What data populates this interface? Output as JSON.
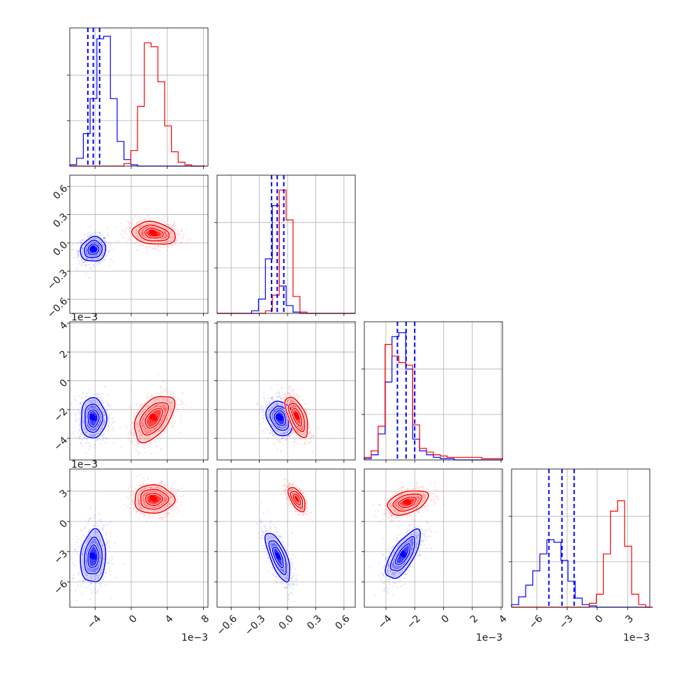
{
  "chart_data": {
    "type": "corner",
    "parameters": 4,
    "series": [
      {
        "name": "",
        "color": "#0000ff"
      },
      {
        "name": "",
        "color": "#ff0000"
      }
    ],
    "axes": {
      "p0": {
        "range": [
          -0.0068,
          0.0085
        ],
        "ticks": [
          -0.004,
          0,
          0.004,
          0.008
        ],
        "tick_labels": [
          "−4",
          "0",
          "4",
          "8"
        ],
        "offset_label": "1e−3"
      },
      "p1": {
        "range": [
          -0.75,
          0.72
        ],
        "ticks": [
          -0.6,
          -0.3,
          0.0,
          0.3,
          0.6
        ],
        "tick_labels": [
          "−0.6",
          "−0.3",
          "0.0",
          "0.3",
          "0.6"
        ],
        "offset_label": ""
      },
      "p2": {
        "range": [
          -0.0055,
          0.0041
        ],
        "ticks": [
          -0.004,
          -0.002,
          0,
          0.002,
          0.004
        ],
        "tick_labels": [
          "−4",
          "−2",
          "0",
          "2",
          "4"
        ],
        "offset_label": "1e−3"
      },
      "p3": {
        "range": [
          -0.0085,
          0.0052
        ],
        "ticks": [
          -0.006,
          -0.003,
          0,
          0.003
        ],
        "tick_labels": [
          "−6",
          "−3",
          "0",
          "3"
        ],
        "offset_label": "1e−3"
      }
    },
    "histograms": [
      {
        "param": "p0",
        "quantiles_blue": [
          -0.0048,
          -0.0042,
          -0.0035
        ],
        "blue": {
          "edges_start": -0.0068,
          "bin_width": 0.00075,
          "counts": [
            0.01,
            0.06,
            0.25,
            0.52,
            0.98,
            1.0,
            0.52,
            0.19,
            0.05,
            0.01,
            0,
            0,
            0,
            0,
            0,
            0,
            0,
            0,
            0,
            0
          ]
        },
        "red": {
          "edges_start": -0.0068,
          "bin_width": 0.00075,
          "counts": [
            0,
            0,
            0,
            0,
            0,
            0,
            0,
            0,
            0.02,
            0.12,
            0.46,
            0.95,
            0.92,
            0.65,
            0.31,
            0.11,
            0.03,
            0.01,
            0,
            0
          ]
        }
      },
      {
        "param": "p1",
        "quantiles_blue": [
          -0.17,
          -0.11,
          -0.04
        ],
        "blue": {
          "edges_start": -0.75,
          "bin_width": 0.0735,
          "counts": [
            0,
            0,
            0,
            0,
            0,
            0.02,
            0.11,
            0.42,
            0.83,
            0.21,
            0.06,
            0.01,
            0,
            0,
            0,
            0,
            0,
            0,
            0,
            0
          ]
        },
        "red": {
          "edges_start": -0.75,
          "bin_width": 0.0735,
          "counts": [
            0,
            0,
            0,
            0,
            0,
            0,
            0,
            0.02,
            0.14,
            0.95,
            0.72,
            0.13,
            0.01,
            0,
            0,
            0,
            0,
            0,
            0,
            0
          ]
        }
      },
      {
        "param": "p2",
        "quantiles_blue": [
          -0.0032,
          -0.0026,
          -0.002
        ],
        "blue": {
          "edges_start": -0.0055,
          "bin_width": 0.00048,
          "counts": [
            0.01,
            0.04,
            0.2,
            0.6,
            0.95,
            0.98,
            0.7,
            0.16,
            0.07,
            0.04,
            0.02,
            0.01,
            0.01,
            0,
            0,
            0,
            0,
            0,
            0,
            0
          ]
        },
        "red": {
          "edges_start": -0.0055,
          "bin_width": 0.00048,
          "counts": [
            0.02,
            0.07,
            0.26,
            0.89,
            0.8,
            0.75,
            0.73,
            0.27,
            0.09,
            0.06,
            0.04,
            0.03,
            0.02,
            0.02,
            0.02,
            0.02,
            0.02,
            0.01,
            0.01,
            0.01
          ]
        }
      },
      {
        "param": "p3",
        "quantiles_blue": [
          -0.0048,
          -0.0035,
          -0.0023
        ],
        "blue": {
          "edges_start": -0.0085,
          "bin_width": 0.0007,
          "counts": [
            0.02,
            0.08,
            0.17,
            0.28,
            0.41,
            0.52,
            0.5,
            0.36,
            0.2,
            0.07,
            0.02,
            0.01,
            0,
            0,
            0,
            0,
            0,
            0,
            0,
            0
          ]
        },
        "red": {
          "edges_start": -0.0085,
          "bin_width": 0.0007,
          "counts": [
            0,
            0,
            0,
            0,
            0,
            0,
            0,
            0,
            0,
            0,
            0,
            0.03,
            0.1,
            0.41,
            0.74,
            0.82,
            0.47,
            0.1,
            0.02,
            0
          ]
        }
      }
    ],
    "scatter_2d": [
      {
        "x": "p0",
        "y": "p1",
        "blue": {
          "mean": [
            -0.0042,
            -0.07
          ],
          "sd": [
            0.0007,
            0.065
          ],
          "corr": 0.1
        },
        "red": {
          "mean": [
            0.0025,
            0.1
          ],
          "sd": [
            0.0012,
            0.06
          ],
          "corr": -0.2
        }
      },
      {
        "x": "p0",
        "y": "p2",
        "blue": {
          "mean": [
            -0.0042,
            -0.0026
          ],
          "sd": [
            0.0007,
            0.0007
          ],
          "corr": 0.0
        },
        "red": {
          "mean": [
            0.0025,
            -0.0026
          ],
          "sd": [
            0.0011,
            0.0008
          ],
          "corr": 0.5
        }
      },
      {
        "x": "p0",
        "y": "p3",
        "blue": {
          "mean": [
            -0.0042,
            -0.0035
          ],
          "sd": [
            0.0007,
            0.0013
          ],
          "corr": 0.1
        },
        "red": {
          "mean": [
            0.0025,
            0.0022
          ],
          "sd": [
            0.0011,
            0.0007
          ],
          "corr": 0.0
        }
      },
      {
        "x": "p1",
        "y": "p2",
        "blue": {
          "mean": [
            -0.08,
            -0.0026
          ],
          "sd": [
            0.07,
            0.0006
          ],
          "corr": -0.2
        },
        "red": {
          "mean": [
            0.1,
            -0.0025
          ],
          "sd": [
            0.06,
            0.0007
          ],
          "corr": -0.6
        }
      },
      {
        "x": "p1",
        "y": "p3",
        "blue": {
          "mean": [
            -0.1,
            -0.0035
          ],
          "sd": [
            0.065,
            0.0012
          ],
          "corr": -0.7
        },
        "red": {
          "mean": [
            0.1,
            0.0022
          ],
          "sd": [
            0.045,
            0.0006
          ],
          "corr": -0.6
        }
      },
      {
        "x": "p2",
        "y": "p3",
        "blue": {
          "mean": [
            -0.0028,
            -0.0033
          ],
          "sd": [
            0.0006,
            0.0012
          ],
          "corr": 0.7
        },
        "red": {
          "mean": [
            -0.0025,
            0.0019
          ],
          "sd": [
            0.0007,
            0.0006
          ],
          "corr": 0.4
        }
      }
    ]
  }
}
